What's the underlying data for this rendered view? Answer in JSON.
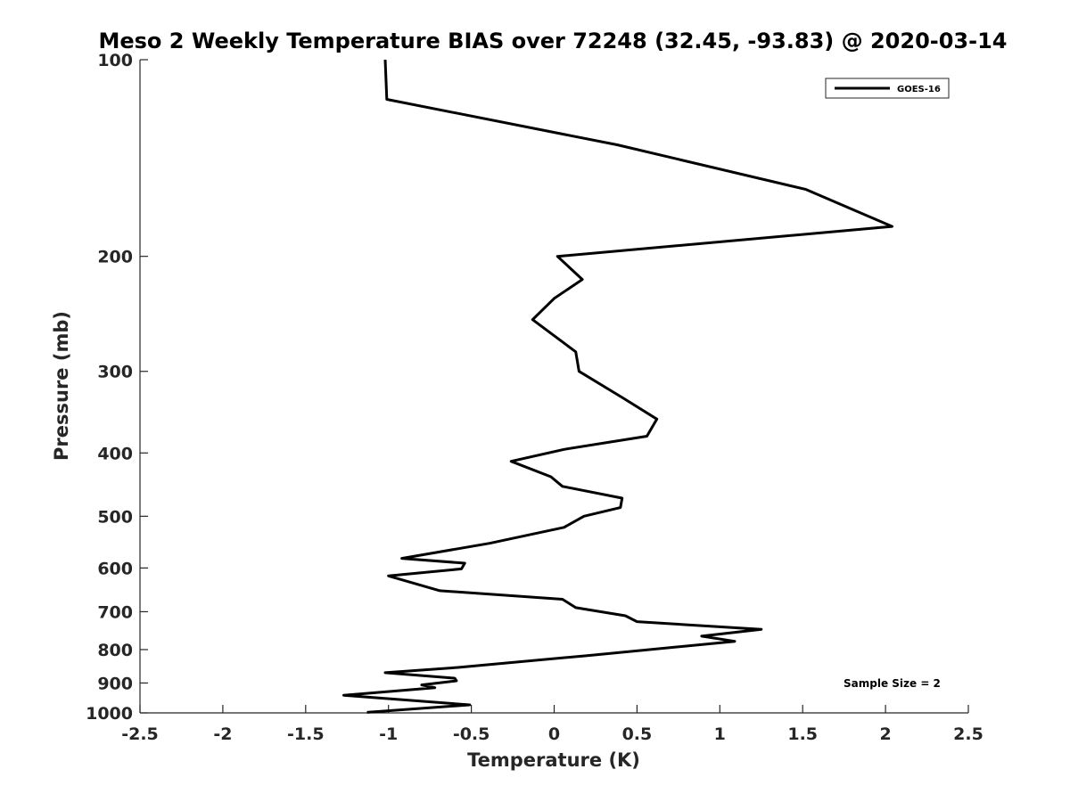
{
  "chart_data": {
    "type": "line",
    "title": "Meso 2 Weekly Temperature BIAS over 72248 (32.45, -93.83) @ 2020-03-14",
    "xlabel": "Temperature (K)",
    "ylabel": "Pressure (mb)",
    "xlim": [
      -2.5,
      2.5
    ],
    "ylim": [
      100,
      1000
    ],
    "yscale": "log",
    "y_reversed": true,
    "xticks": [
      -2.5,
      -2,
      -1.5,
      -1,
      -0.5,
      0,
      0.5,
      1,
      1.5,
      2,
      2.5
    ],
    "xtick_labels": [
      "-2.5",
      "-2",
      "-1.5",
      "-1",
      "-0.5",
      "0",
      "0.5",
      "1",
      "1.5",
      "2",
      "2.5"
    ],
    "yticks": [
      100,
      200,
      300,
      400,
      500,
      600,
      700,
      800,
      900,
      1000
    ],
    "ytick_labels": [
      "100",
      "200",
      "300",
      "400",
      "500",
      "600",
      "700",
      "800",
      "900",
      "1000"
    ],
    "grid": false,
    "legend_position": "top-right",
    "series": [
      {
        "name": "GOES-16",
        "color": "#000000",
        "x": [
          -1.02,
          -1.01,
          0.38,
          1.52,
          2.04,
          0.02,
          0.17,
          0.0,
          -0.13,
          0.13,
          0.15,
          0.42,
          0.62,
          0.56,
          0.06,
          -0.26,
          -0.02,
          0.05,
          0.41,
          0.4,
          0.18,
          0.06,
          -0.39,
          -0.92,
          -0.54,
          -0.56,
          -1.0,
          -0.69,
          0.05,
          0.13,
          0.43,
          0.5,
          1.25,
          0.89,
          1.09,
          0.2,
          -0.58,
          -1.02,
          -0.6,
          -0.59,
          -0.8,
          -0.72,
          -1.27,
          -0.51,
          -1.13
        ],
        "y": [
          100,
          115,
          135,
          158,
          180,
          200,
          217,
          232,
          250,
          280,
          300,
          330,
          355,
          377,
          395,
          412,
          435,
          450,
          469,
          485,
          500,
          520,
          550,
          580,
          590,
          602,
          617,
          650,
          670,
          690,
          710,
          725,
          745,
          763,
          777,
          817,
          852,
          868,
          885,
          893,
          906,
          915,
          940,
          972,
          998
        ]
      }
    ],
    "annotations": [
      "Sample Size = 2"
    ]
  }
}
